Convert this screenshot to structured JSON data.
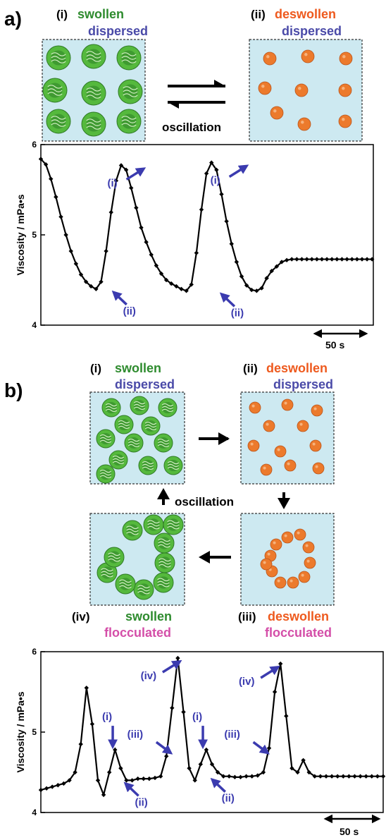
{
  "panel_a": {
    "label": "a)",
    "state_i": {
      "roman": "(i)",
      "state": "swollen",
      "dispersion": "dispersed"
    },
    "state_ii": {
      "roman": "(ii)",
      "state": "deswollen",
      "dispersion": "dispersed"
    },
    "oscillation_label": "oscillation",
    "scale_bar": "50 s"
  },
  "panel_b": {
    "label": "b)",
    "state_i": {
      "roman": "(i)",
      "state": "swollen",
      "dispersion": "dispersed"
    },
    "state_ii": {
      "roman": "(ii)",
      "state": "deswollen",
      "dispersion": "dispersed"
    },
    "state_iii": {
      "roman": "(iii)",
      "state": "deswollen",
      "dispersion": "flocculated"
    },
    "state_iv": {
      "roman": "(iv)",
      "state": "swollen",
      "dispersion": "flocculated"
    },
    "oscillation_label": "oscillation",
    "scale_bar": "50 s"
  },
  "colors": {
    "swollen": "#2e8b2e",
    "deswollen": "#ee5a1e",
    "dispersed": "#4a4aa8",
    "flocculated": "#d44ea8",
    "arrow": "#3b3baf",
    "box_bg": "#cde9f1",
    "gel_green": "#55b93d",
    "gel_orange": "#ec7a2c"
  },
  "chart_data": [
    {
      "type": "line",
      "ylabel": "Viscosity / mPa•s",
      "ylim": [
        4,
        6
      ],
      "yticks": [
        "4",
        "5",
        "6"
      ],
      "x_units": "s",
      "xlim": [
        0,
        265
      ],
      "x": [
        0,
        4,
        8,
        12,
        16,
        20,
        24,
        28,
        32,
        36,
        40,
        44,
        48,
        52,
        56,
        60,
        64,
        68,
        72,
        76,
        80,
        84,
        88,
        92,
        96,
        100,
        104,
        108,
        112,
        116,
        120,
        124,
        128,
        132,
        136,
        140,
        144,
        148,
        152,
        156,
        160,
        164,
        168,
        172,
        176,
        180,
        184,
        188,
        192,
        196,
        200,
        204,
        208,
        212,
        216,
        220,
        224,
        228,
        232,
        236,
        240,
        244,
        248,
        252,
        256,
        260,
        264
      ],
      "y": [
        5.84,
        5.78,
        5.62,
        5.42,
        5.2,
        5.0,
        4.82,
        4.68,
        4.56,
        4.48,
        4.43,
        4.4,
        4.48,
        4.82,
        5.25,
        5.6,
        5.77,
        5.72,
        5.52,
        5.3,
        5.08,
        4.92,
        4.78,
        4.66,
        4.57,
        4.5,
        4.46,
        4.43,
        4.4,
        4.38,
        4.45,
        4.8,
        5.28,
        5.68,
        5.8,
        5.72,
        5.45,
        5.15,
        4.9,
        4.7,
        4.54,
        4.44,
        4.39,
        4.38,
        4.41,
        4.52,
        4.6,
        4.65,
        4.7,
        4.72,
        4.73,
        4.73,
        4.73,
        4.73,
        4.73,
        4.73,
        4.73,
        4.73,
        4.73,
        4.73,
        4.73,
        4.73,
        4.73,
        4.73,
        4.73,
        4.73,
        4.73
      ],
      "annotations": [
        {
          "label": "(i)",
          "x": 84,
          "y": 5.77
        },
        {
          "label": "(ii)",
          "x": 56,
          "y": 4.4
        },
        {
          "label": "(i)",
          "x": 166,
          "y": 5.8
        },
        {
          "label": "(ii)",
          "x": 142,
          "y": 4.38
        }
      ],
      "scale_bar_seconds": 50
    },
    {
      "type": "line",
      "ylabel": "Viscosity / mPa•s",
      "ylim": [
        4,
        6
      ],
      "yticks": [
        "4",
        "5",
        "6"
      ],
      "x_units": "s",
      "xlim": [
        0,
        300
      ],
      "x": [
        0,
        5,
        10,
        15,
        20,
        25,
        30,
        35,
        40,
        45,
        50,
        55,
        60,
        65,
        70,
        75,
        80,
        85,
        90,
        95,
        100,
        105,
        110,
        115,
        120,
        125,
        130,
        135,
        140,
        145,
        150,
        155,
        160,
        165,
        170,
        175,
        180,
        185,
        190,
        195,
        200,
        205,
        210,
        215,
        220,
        225,
        230,
        235,
        240,
        245,
        250,
        255,
        260,
        265,
        270,
        275,
        280,
        285,
        290,
        295,
        300
      ],
      "y": [
        4.28,
        4.3,
        4.32,
        4.34,
        4.36,
        4.4,
        4.5,
        4.85,
        5.55,
        5.1,
        4.4,
        4.22,
        4.5,
        4.78,
        4.55,
        4.4,
        4.4,
        4.42,
        4.42,
        4.42,
        4.43,
        4.45,
        4.7,
        5.3,
        5.92,
        5.25,
        4.55,
        4.4,
        4.6,
        4.78,
        4.6,
        4.5,
        4.45,
        4.45,
        4.44,
        4.44,
        4.45,
        4.45,
        4.46,
        4.5,
        4.8,
        5.5,
        5.85,
        5.2,
        4.55,
        4.5,
        4.65,
        4.5,
        4.45,
        4.45,
        4.45,
        4.45,
        4.45,
        4.45,
        4.45,
        4.45,
        4.45,
        4.45,
        4.45,
        4.45,
        4.45
      ],
      "annotations": [
        {
          "label": "(i)",
          "x": 63,
          "y": 4.78
        },
        {
          "label": "(ii)",
          "x": 72,
          "y": 4.4
        },
        {
          "label": "(iii)",
          "x": 116,
          "y": 4.7
        },
        {
          "label": "(iv)",
          "x": 124,
          "y": 5.92
        },
        {
          "label": "(i)",
          "x": 142,
          "y": 4.78
        },
        {
          "label": "(ii)",
          "x": 148,
          "y": 4.45
        },
        {
          "label": "(iii)",
          "x": 201,
          "y": 4.7
        },
        {
          "label": "(iv)",
          "x": 210,
          "y": 5.85
        }
      ],
      "scale_bar_seconds": 50
    }
  ]
}
